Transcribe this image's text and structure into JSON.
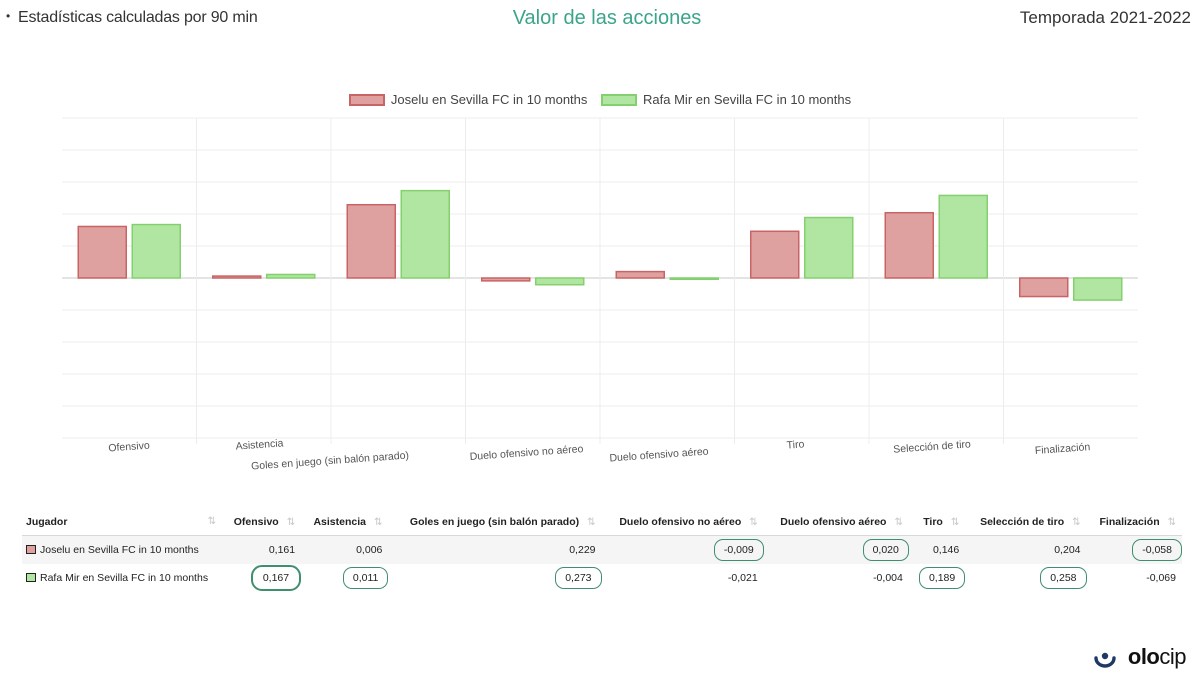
{
  "header": {
    "left": "Estadísticas calculadas por 90 min",
    "center": "Valor de las acciones",
    "right": "Temporada 2021-2022"
  },
  "colors": {
    "series1_fill": "#dfa0a0",
    "series1_stroke": "#c86464",
    "series2_fill": "#b0e6a2",
    "series2_stroke": "#84d06e",
    "accent": "#3aa58a"
  },
  "chart_data": {
    "type": "bar",
    "title": "",
    "categories": [
      "Ofensivo",
      "Asistencia",
      "Goles en juego (sin balón parado)",
      "Duelo ofensivo no aéreo",
      "Duelo ofensivo aéreo",
      "Tiro",
      "Selección de tiro",
      "Finalización"
    ],
    "series": [
      {
        "name": "Joselu en Sevilla FC in 10 months",
        "values": [
          0.161,
          0.006,
          0.229,
          -0.009,
          0.02,
          0.146,
          0.204,
          -0.058
        ]
      },
      {
        "name": "Rafa Mir en Sevilla FC in 10 months",
        "values": [
          0.167,
          0.011,
          0.273,
          -0.021,
          -0.004,
          0.189,
          0.258,
          -0.069
        ]
      }
    ],
    "ylim": [
      -0.5,
      0.5
    ],
    "grid": true,
    "legend": "top-center",
    "xlabel": "",
    "ylabel": ""
  },
  "table": {
    "headers": [
      "Jugador",
      "Ofensivo",
      "Asistencia",
      "Goles en juego (sin balón parado)",
      "Duelo ofensivo no aéreo",
      "Duelo ofensivo aéreo",
      "Tiro",
      "Selección de tiro",
      "Finalización"
    ],
    "sort_icon": "⇅",
    "rows": [
      {
        "player": "Joselu en Sevilla FC in 10 months",
        "cells": [
          "0,161",
          "0,006",
          "0,229",
          "-0,009",
          "0,020",
          "0,146",
          "0,204",
          "-0,058"
        ]
      },
      {
        "player": "Rafa Mir en Sevilla FC in 10 months",
        "cells": [
          "0,167",
          "0,011",
          "0,273",
          "-0,021",
          "-0,004",
          "0,189",
          "0,258",
          "-0,069"
        ]
      }
    ]
  },
  "brand": {
    "name_bold": "olo",
    "name_light": "cip",
    "icon": "olocip-logo-icon"
  }
}
